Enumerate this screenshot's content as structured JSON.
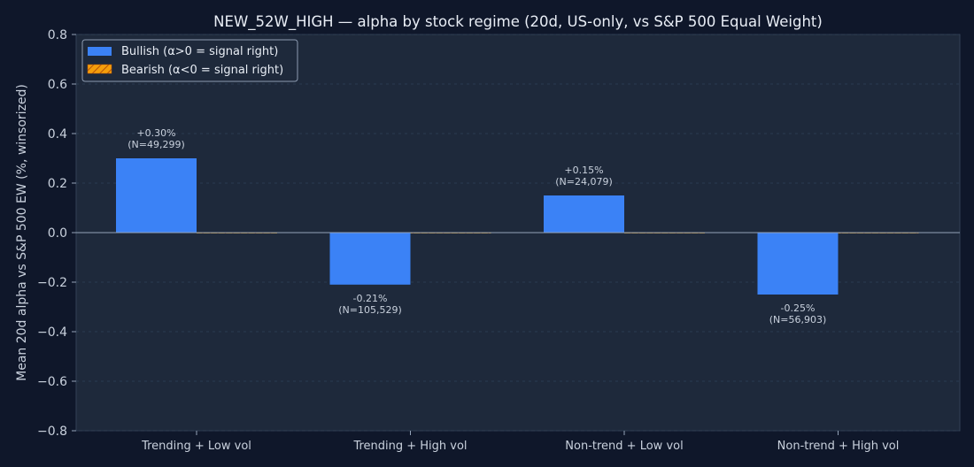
{
  "chart_data": {
    "type": "bar",
    "title": "NEW_52W_HIGH — alpha by stock regime (20d, US-only, vs S&P 500 Equal Weight)",
    "xlabel": "",
    "ylabel": "Mean 20d alpha vs S&P 500 EW (%, winsorized)",
    "ylim": [
      -0.8,
      0.8
    ],
    "yticks": [
      -0.8,
      -0.6,
      -0.4,
      -0.2,
      0.0,
      0.2,
      0.4,
      0.6,
      0.8
    ],
    "ytick_labels": [
      "−0.8",
      "−0.6",
      "−0.4",
      "−0.2",
      "0.0",
      "0.2",
      "0.4",
      "0.6",
      "0.8"
    ],
    "categories": [
      "Trending + Low vol",
      "Trending + High vol",
      "Non-trend + Low vol",
      "Non-trend + High vol"
    ],
    "series": [
      {
        "name": "Bullish (α>0 = signal right)",
        "color": "#3b82f6",
        "values": [
          0.3,
          -0.21,
          0.15,
          -0.25
        ],
        "labels": [
          "+0.30%",
          "-0.21%",
          "+0.15%",
          "-0.25%"
        ],
        "counts": [
          "(N=49,299)",
          "(N=105,529)",
          "(N=24,079)",
          "(N=56,903)"
        ]
      },
      {
        "name": "Bearish (α<0 = signal right)",
        "color": "#f59e0b",
        "hatch": true,
        "values": [
          0,
          0,
          0,
          0
        ]
      }
    ],
    "grid": true,
    "legend": "top-left",
    "colors": {
      "background": "#0f172a",
      "plot_background": "#1e293b",
      "text": "#c9d1dd",
      "zero_line": "#94a3b8"
    }
  }
}
